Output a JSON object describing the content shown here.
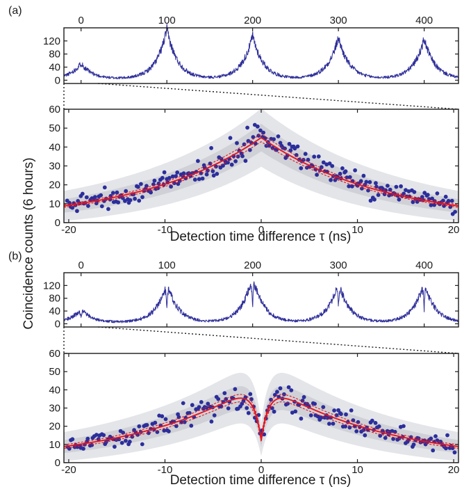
{
  "figure": {
    "ylabel": "Coincidence counts (6 hours)",
    "panels": [
      {
        "label": "(a)"
      },
      {
        "label": "(b)"
      }
    ]
  },
  "colors": {
    "trace": "#2e2e9a",
    "points": "#2b2e9b",
    "fit": "#e8141b",
    "band_outer": "#e4e5e9",
    "band_mid": "#cfd1d6",
    "band_inner": "#b9bcc2",
    "axis": "#1a1a1a"
  },
  "chart_data": [
    {
      "panel": "(a)",
      "name": "overview",
      "type": "line",
      "xlabel": "",
      "ylabel": "",
      "xlim": [
        -20,
        440
      ],
      "ylim": [
        -10,
        160
      ],
      "x_ticks": [
        0,
        100,
        200,
        300,
        400
      ],
      "x_tick_labels": [
        "0",
        "100",
        "200",
        "300",
        "400"
      ],
      "y_ticks": [
        0,
        40,
        80,
        120
      ],
      "y_tick_labels": [
        "0",
        "40",
        "80",
        "120"
      ],
      "x_axis_position": "top",
      "peaks": [
        {
          "x": 0,
          "height": 48
        },
        {
          "x": 100,
          "height": 152
        },
        {
          "x": 200,
          "height": 132
        },
        {
          "x": 300,
          "height": 126
        },
        {
          "x": 400,
          "height": 122
        }
      ],
      "peak_shape": "two-sided exponential",
      "dip_at_zero": false
    },
    {
      "panel": "(a)",
      "name": "zoom",
      "type": "scatter",
      "xlabel": "Detection time difference τ (ns)",
      "ylabel": "",
      "xlim": [
        -20.5,
        20.5
      ],
      "ylim": [
        0,
        60
      ],
      "x_ticks": [
        -20,
        -10,
        0,
        10,
        20
      ],
      "x_tick_labels": [
        "-20",
        "-10",
        "0",
        "10",
        "20"
      ],
      "y_ticks": [
        0,
        10,
        20,
        30,
        40,
        50,
        60
      ],
      "y_tick_labels": [
        "0",
        "10",
        "20",
        "30",
        "40",
        "50",
        "60"
      ],
      "series": [
        {
          "type": "scatter",
          "points_count": 260
        },
        {
          "type": "line",
          "style": "solid",
          "model": "A·exp(-|τ|/t)",
          "peak": 45,
          "decay_ns": 12.6
        },
        {
          "type": "line",
          "style": "dashed",
          "offset": 1.8
        },
        {
          "type": "line",
          "style": "dashed",
          "offset": -1.8
        },
        {
          "type": "area",
          "band": "confidence",
          "level": "outer"
        },
        {
          "type": "area",
          "band": "confidence",
          "level": "inner"
        }
      ],
      "dip": null
    },
    {
      "panel": "(b)",
      "name": "overview",
      "type": "line",
      "xlabel": "",
      "ylabel": "",
      "xlim": [
        -20,
        440
      ],
      "ylim": [
        -10,
        160
      ],
      "x_ticks": [
        0,
        100,
        200,
        300,
        400
      ],
      "x_tick_labels": [
        "0",
        "100",
        "200",
        "300",
        "400"
      ],
      "y_ticks": [
        0,
        40,
        80,
        120
      ],
      "y_tick_labels": [
        "0",
        "40",
        "80",
        "120"
      ],
      "x_axis_position": "top",
      "peaks": [
        {
          "x": 0,
          "height": 42
        },
        {
          "x": 100,
          "height": 128
        },
        {
          "x": 200,
          "height": 148
        },
        {
          "x": 300,
          "height": 128
        },
        {
          "x": 400,
          "height": 128
        }
      ],
      "peak_shape": "two-sided exponential",
      "dip_at_zero": true
    },
    {
      "panel": "(b)",
      "name": "zoom",
      "type": "scatter",
      "xlabel": "Detection time difference τ (ns)",
      "ylabel": "",
      "xlim": [
        -20.5,
        20.5
      ],
      "ylim": [
        0,
        60
      ],
      "x_ticks": [
        -20,
        -10,
        0,
        10,
        20
      ],
      "x_tick_labels": [
        "-20",
        "-10",
        "0",
        "10",
        "20"
      ],
      "y_ticks": [
        0,
        10,
        20,
        30,
        40,
        50,
        60
      ],
      "y_tick_labels": [
        "0",
        "10",
        "20",
        "30",
        "40",
        "50",
        "60"
      ],
      "series": [
        {
          "type": "scatter",
          "points_count": 230
        },
        {
          "type": "line",
          "style": "solid",
          "model": "A·exp(-|τ|/t)·(1-V·exp(-|τ|/w))",
          "peak": 45,
          "decay_ns": 12.6,
          "visibility": 0.72,
          "dip_width_ns": 0.9
        },
        {
          "type": "line",
          "style": "dashed",
          "offset": 1.8
        },
        {
          "type": "line",
          "style": "dashed",
          "offset": -1.8
        },
        {
          "type": "area",
          "band": "confidence",
          "level": "outer"
        },
        {
          "type": "area",
          "band": "confidence",
          "level": "inner"
        }
      ],
      "dip": {
        "x": 0,
        "min": 12
      }
    }
  ]
}
